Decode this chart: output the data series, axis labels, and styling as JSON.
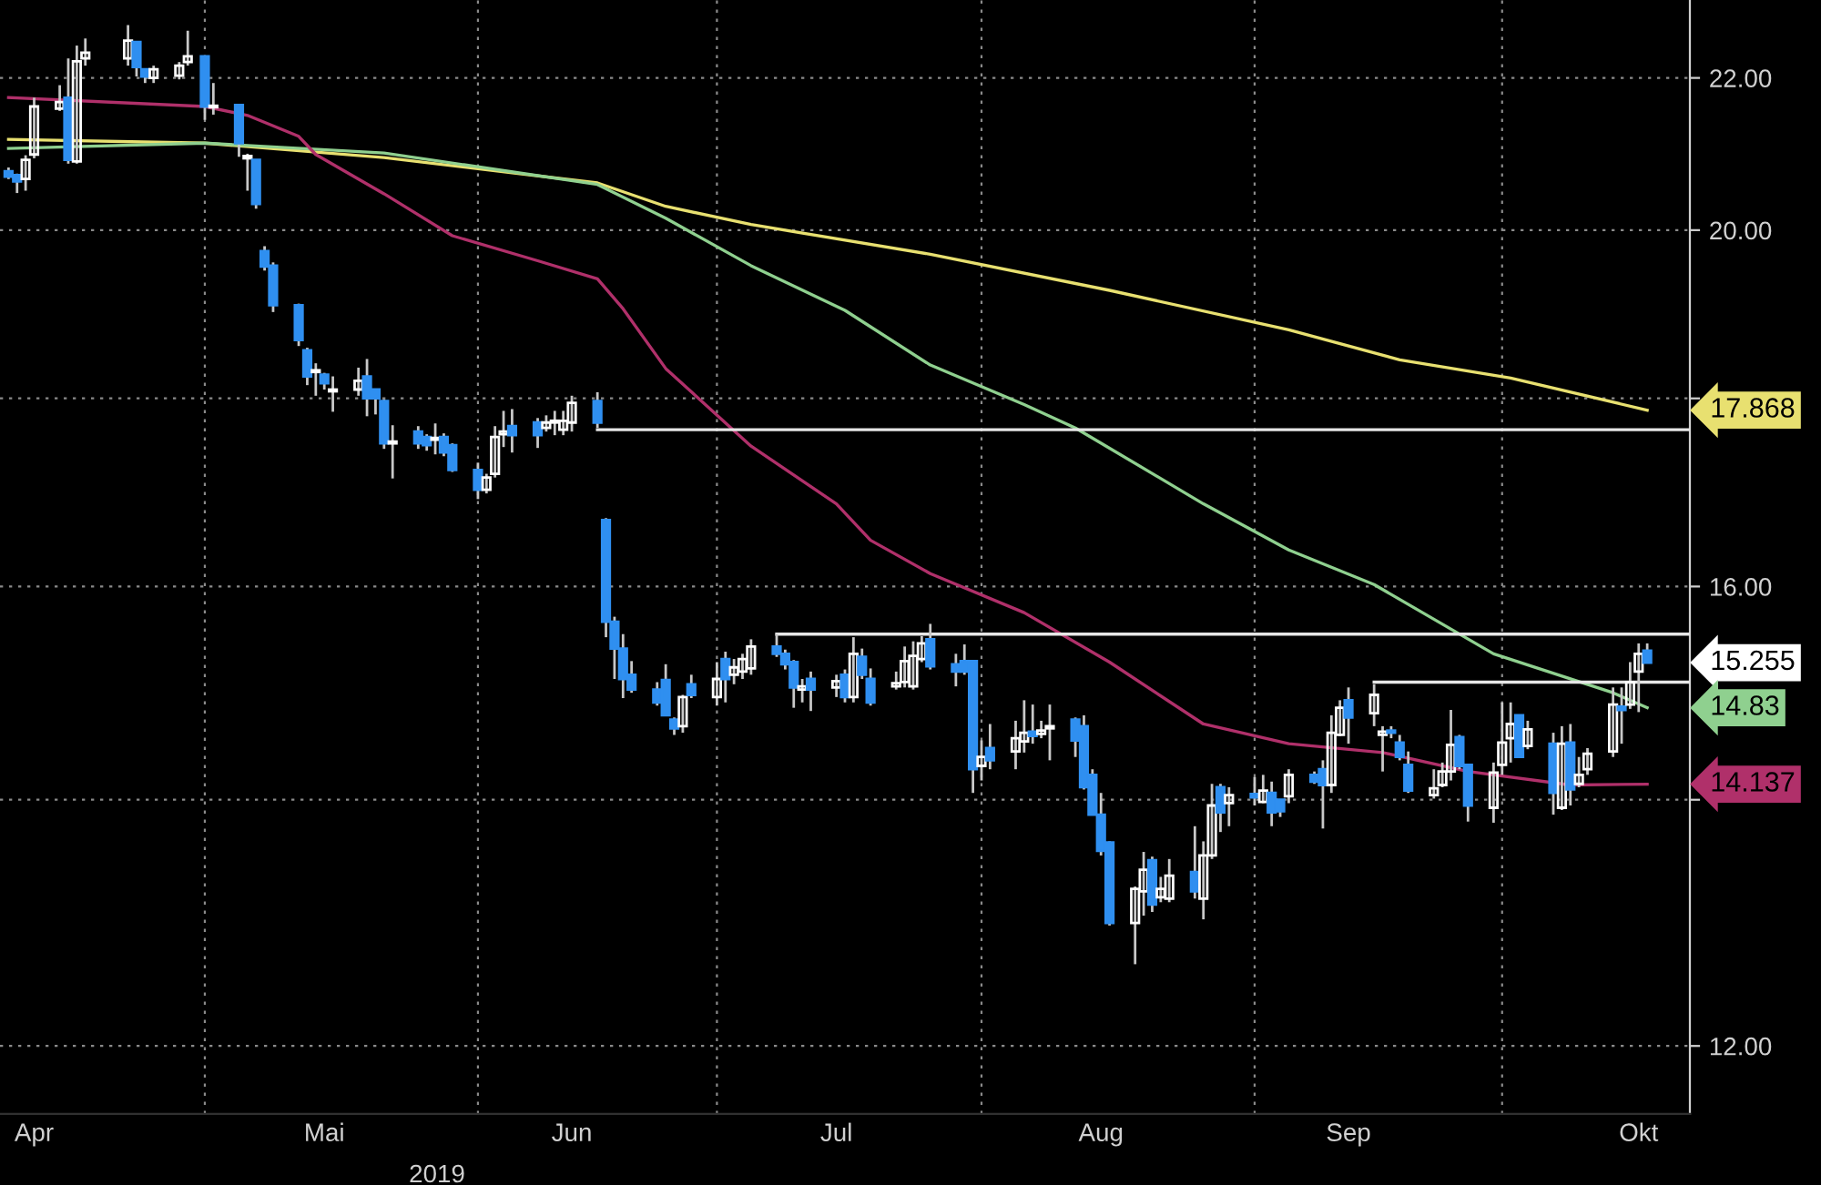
{
  "chart_data": {
    "type": "candlestick",
    "xlabel": "2019",
    "log": "y",
    "grid": true,
    "legend": false,
    "x": [
      "2019-04-09",
      "2019-04-10",
      "2019-04-11",
      "2019-04-12",
      "2019-04-15",
      "2019-04-16",
      "2019-04-17",
      "2019-04-18",
      "2019-04-23",
      "2019-04-24",
      "2019-04-25",
      "2019-04-26",
      "2019-04-29",
      "2019-04-30",
      "2019-05-02",
      "2019-05-03",
      "2019-05-06",
      "2019-05-07",
      "2019-05-08",
      "2019-05-09",
      "2019-05-10",
      "2019-05-13",
      "2019-05-14",
      "2019-05-15",
      "2019-05-16",
      "2019-05-17",
      "2019-05-20",
      "2019-05-21",
      "2019-05-22",
      "2019-05-23",
      "2019-05-24",
      "2019-05-27",
      "2019-05-28",
      "2019-05-29",
      "2019-05-30",
      "2019-05-31",
      "2019-06-03",
      "2019-06-04",
      "2019-06-05",
      "2019-06-06",
      "2019-06-07",
      "2019-06-10",
      "2019-06-11",
      "2019-06-12",
      "2019-06-13",
      "2019-06-14",
      "2019-06-17",
      "2019-06-18",
      "2019-06-19",
      "2019-06-20",
      "2019-06-21",
      "2019-06-24",
      "2019-06-25",
      "2019-06-26",
      "2019-06-27",
      "2019-06-28",
      "2019-07-01",
      "2019-07-02",
      "2019-07-03",
      "2019-07-04",
      "2019-07-05",
      "2019-07-08",
      "2019-07-09",
      "2019-07-10",
      "2019-07-11",
      "2019-07-12",
      "2019-07-15",
      "2019-07-16",
      "2019-07-17",
      "2019-07-18",
      "2019-07-19",
      "2019-07-22",
      "2019-07-23",
      "2019-07-24",
      "2019-07-25",
      "2019-07-26",
      "2019-07-29",
      "2019-07-30",
      "2019-07-31",
      "2019-08-01",
      "2019-08-02",
      "2019-08-05",
      "2019-08-06",
      "2019-08-07",
      "2019-08-08",
      "2019-08-09",
      "2019-08-12",
      "2019-08-13",
      "2019-08-14",
      "2019-08-15",
      "2019-08-16",
      "2019-08-19",
      "2019-08-20",
      "2019-08-21",
      "2019-08-22",
      "2019-08-23",
      "2019-08-26",
      "2019-08-27",
      "2019-08-28",
      "2019-08-29",
      "2019-08-30",
      "2019-09-02",
      "2019-09-03",
      "2019-09-04",
      "2019-09-05",
      "2019-09-06",
      "2019-09-09",
      "2019-09-10",
      "2019-09-11",
      "2019-09-12",
      "2019-09-13",
      "2019-09-16",
      "2019-09-17",
      "2019-09-18",
      "2019-09-19",
      "2019-09-20",
      "2019-09-23",
      "2019-09-24",
      "2019-09-25",
      "2019-09-26",
      "2019-09-27",
      "2019-09-30",
      "2019-10-01",
      "2019-10-02",
      "2019-10-03",
      "2019-10-04",
      "2019-10-07",
      "2019-10-08",
      "2019-10-09",
      "2019-10-10",
      "2019-10-11",
      "2019-10-14",
      "2019-10-15",
      "2019-10-16",
      "2019-10-17",
      "2019-10-18"
    ],
    "xlim": [
      "2019-04-08",
      "2019-10-23"
    ],
    "xticks": [
      {
        "value": "2019-04-12",
        "label": "Apr"
      },
      {
        "value": "2019-05-16",
        "label": "Mai"
      },
      {
        "value": "2019-06-14",
        "label": "Jun"
      },
      {
        "value": "2019-07-15",
        "label": "Jul"
      },
      {
        "value": "2019-08-15",
        "label": "Aug"
      },
      {
        "value": "2019-09-13",
        "label": "Sep"
      },
      {
        "value": "2019-10-17",
        "label": "Okt"
      },
      {
        "value": "2019-05-02",
        "label": null
      },
      {
        "value": "2019-06-03",
        "label": null
      },
      {
        "value": "2019-07-01",
        "label": null
      },
      {
        "value": "2019-08-01",
        "label": null
      },
      {
        "value": "2019-09-02",
        "label": null
      },
      {
        "value": "2019-10-01",
        "label": null
      }
    ],
    "ylim": [
      11.5,
      23.1
    ],
    "yticks": [
      {
        "value": 12,
        "label": "12.00"
      },
      {
        "value": 14,
        "label": null
      },
      {
        "value": 16,
        "label": "16.00"
      },
      {
        "value": 18,
        "label": null
      },
      {
        "value": 20,
        "label": "20.00"
      },
      {
        "value": 22,
        "label": "22.00"
      }
    ],
    "series": [
      {
        "colors": [
          "#2f8ff0",
          "#2f8ff0",
          "#ffffff",
          "#ffffff",
          "#ffffff",
          "#2f8ff0",
          "#ffffff",
          "#ffffff",
          "#ffffff",
          "#2f8ff0",
          "#2f8ff0",
          "#ffffff",
          "#ffffff",
          "#ffffff",
          "#2f8ff0",
          "#ffffff",
          "#2f8ff0",
          "#ffffff",
          "#2f8ff0",
          "#2f8ff0",
          "#2f8ff0",
          "#2f8ff0",
          "#2f8ff0",
          "#ffffff",
          "#2f8ff0",
          "#ffffff",
          "#ffffff",
          "#2f8ff0",
          "#2f8ff0",
          "#2f8ff0",
          "#ffffff",
          "#2f8ff0",
          "#2f8ff0",
          "#ffffff",
          "#2f8ff0",
          "#2f8ff0",
          "#2f8ff0",
          "#ffffff",
          "#ffffff",
          "#ffffff",
          "#2f8ff0",
          "#2f8ff0",
          "#ffffff",
          "#ffffff",
          "#ffffff",
          "#ffffff",
          "#2f8ff0",
          "#2f8ff0",
          "#2f8ff0",
          "#2f8ff0",
          "#2f8ff0",
          "#2f8ff0",
          "#2f8ff0",
          "#2f8ff0",
          "#ffffff",
          "#2f8ff0",
          "#ffffff",
          "#2f8ff0",
          "#ffffff",
          "#ffffff",
          "#ffffff",
          "#2f8ff0",
          "#2f8ff0",
          "#2f8ff0",
          "#ffffff",
          "#2f8ff0",
          "#ffffff",
          "#2f8ff0",
          "#ffffff",
          "#2f8ff0",
          "#2f8ff0",
          "#ffffff",
          "#ffffff",
          "#ffffff",
          "#ffffff",
          "#2f8ff0",
          "#2f8ff0",
          "#2f8ff0",
          "#2f8ff0",
          "#ffffff",
          "#2f8ff0",
          "#ffffff",
          "#ffffff",
          "#2f8ff0",
          "#ffffff",
          "#ffffff",
          "#2f8ff0",
          "#2f8ff0",
          "#2f8ff0",
          "#2f8ff0",
          "#2f8ff0",
          "#ffffff",
          "#ffffff",
          "#2f8ff0",
          "#ffffff",
          "#ffffff",
          "#2f8ff0",
          "#ffffff",
          "#ffffff",
          "#2f8ff0",
          "#ffffff",
          "#2f8ff0",
          "#ffffff",
          "#2f8ff0",
          "#2f8ff0",
          "#ffffff",
          "#2f8ff0",
          "#2f8ff0",
          "#ffffff",
          "#ffffff",
          "#2f8ff0",
          "#ffffff",
          "#ffffff",
          "#2f8ff0",
          "#2f8ff0",
          "#2f8ff0",
          "#ffffff",
          "#ffffff",
          "#ffffff",
          "#2f8ff0",
          "#2f8ff0",
          "#ffffff",
          "#ffffff",
          "#ffffff",
          "#2f8ff0",
          "#ffffff",
          "#2f8ff0",
          "#ffffff",
          "#2f8ff0",
          "#ffffff",
          "#ffffff",
          "#ffffff",
          "#2f8ff0",
          "#ffffff",
          "#ffffff",
          "#2f8ff0"
        ],
        "ohlc": [
          [
            20.75,
            20.8,
            20.65,
            20.68
          ],
          [
            20.7,
            20.72,
            20.47,
            20.62
          ],
          [
            20.65,
            20.96,
            20.5,
            20.9
          ],
          [
            20.97,
            21.73,
            20.92,
            21.61
          ],
          [
            21.58,
            21.9,
            21.55,
            21.67
          ],
          [
            21.73,
            22.27,
            20.85,
            20.9
          ],
          [
            20.88,
            22.45,
            20.85,
            22.23
          ],
          [
            22.27,
            22.55,
            22.17,
            22.35
          ],
          [
            22.27,
            22.74,
            22.17,
            22.52
          ],
          [
            22.5,
            22.5,
            22.02,
            22.15
          ],
          [
            22.12,
            22.12,
            21.93,
            22.02
          ],
          [
            22.0,
            22.17,
            21.93,
            22.12
          ],
          [
            22.03,
            22.22,
            21.98,
            22.17
          ],
          [
            22.22,
            22.66,
            22.17,
            22.3
          ],
          [
            22.3,
            22.3,
            21.43,
            21.61
          ],
          [
            21.6,
            21.93,
            21.5,
            21.62
          ],
          [
            21.63,
            21.63,
            20.94,
            21.12
          ],
          [
            20.92,
            20.98,
            20.5,
            20.95
          ],
          [
            20.9,
            20.9,
            20.27,
            20.33
          ],
          [
            19.74,
            19.8,
            19.5,
            19.55
          ],
          [
            19.56,
            19.6,
            19.0,
            19.08
          ],
          [
            19.08,
            19.1,
            18.6,
            18.67
          ],
          [
            18.55,
            18.58,
            18.15,
            18.25
          ],
          [
            18.3,
            18.4,
            18.03,
            18.32
          ],
          [
            18.27,
            18.29,
            18.1,
            18.17
          ],
          [
            18.08,
            18.25,
            17.85,
            18.1
          ],
          [
            18.1,
            18.35,
            18.03,
            18.2
          ],
          [
            18.25,
            18.45,
            17.8,
            18.0
          ],
          [
            18.1,
            18.1,
            17.82,
            18.0
          ],
          [
            17.97,
            17.99,
            17.44,
            17.5
          ],
          [
            17.5,
            17.7,
            17.12,
            17.52
          ],
          [
            17.63,
            17.69,
            17.44,
            17.5
          ],
          [
            17.57,
            17.6,
            17.42,
            17.48
          ],
          [
            17.54,
            17.72,
            17.38,
            17.56
          ],
          [
            17.57,
            17.61,
            17.36,
            17.4
          ],
          [
            17.48,
            17.5,
            17.19,
            17.21
          ],
          [
            17.21,
            17.29,
            16.9,
            17.0
          ],
          [
            17.0,
            17.17,
            16.96,
            17.13
          ],
          [
            17.17,
            17.69,
            17.13,
            17.57
          ],
          [
            17.6,
            17.86,
            17.46,
            17.63
          ],
          [
            17.69,
            17.88,
            17.4,
            17.59
          ],
          [
            17.73,
            17.78,
            17.45,
            17.59
          ],
          [
            17.67,
            17.81,
            17.63,
            17.73
          ],
          [
            17.73,
            17.86,
            17.59,
            17.75
          ],
          [
            17.65,
            17.86,
            17.59,
            17.75
          ],
          [
            17.73,
            18.03,
            17.63,
            17.95
          ],
          [
            17.97,
            18.07,
            17.67,
            17.73
          ],
          [
            16.68,
            16.7,
            15.5,
            15.65
          ],
          [
            15.65,
            15.7,
            15.1,
            15.39
          ],
          [
            15.39,
            15.53,
            14.92,
            15.1
          ],
          [
            15.14,
            15.27,
            14.97,
            15.0
          ],
          [
            15.0,
            15.07,
            14.85,
            14.88
          ],
          [
            15.09,
            15.24,
            14.76,
            14.76
          ],
          [
            14.72,
            14.74,
            14.58,
            14.64
          ],
          [
            14.66,
            14.95,
            14.6,
            14.93
          ],
          [
            15.05,
            15.14,
            14.92,
            14.95
          ],
          [
            14.93,
            15.26,
            14.85,
            15.1
          ],
          [
            15.29,
            15.36,
            14.88,
            15.1
          ],
          [
            15.14,
            15.29,
            15.05,
            15.21
          ],
          [
            15.17,
            15.34,
            15.1,
            15.29
          ],
          [
            15.2,
            15.48,
            15.14,
            15.41
          ],
          [
            15.41,
            15.53,
            15.31,
            15.34
          ],
          [
            15.34,
            15.38,
            15.19,
            15.24
          ],
          [
            15.26,
            15.28,
            14.83,
            15.02
          ],
          [
            15.0,
            15.1,
            14.88,
            15.03
          ],
          [
            15.1,
            15.17,
            14.8,
            15.0
          ],
          [
            15.02,
            15.14,
            14.93,
            15.08
          ],
          [
            15.14,
            15.19,
            14.88,
            14.93
          ],
          [
            14.93,
            15.5,
            14.88,
            15.34
          ],
          [
            15.31,
            15.39,
            15.1,
            15.14
          ],
          [
            15.1,
            15.2,
            14.85,
            14.88
          ],
          [
            15.03,
            15.17,
            15.0,
            15.06
          ],
          [
            15.07,
            15.41,
            15.02,
            15.27
          ],
          [
            15.03,
            15.46,
            15.0,
            15.32
          ],
          [
            15.29,
            15.51,
            15.26,
            15.44
          ],
          [
            15.48,
            15.63,
            15.19,
            15.22
          ],
          [
            15.24,
            15.34,
            15.03,
            15.17
          ],
          [
            15.27,
            15.43,
            15.14,
            15.17
          ],
          [
            15.27,
            15.27,
            14.06,
            14.27
          ],
          [
            14.3,
            14.53,
            14.17,
            14.38
          ],
          [
            14.46,
            14.68,
            14.27,
            14.35
          ],
          [
            14.43,
            14.71,
            14.27,
            14.55
          ],
          [
            14.52,
            14.9,
            14.42,
            14.6
          ],
          [
            14.61,
            14.86,
            14.5,
            14.57
          ],
          [
            14.59,
            14.71,
            14.55,
            14.62
          ],
          [
            14.64,
            14.86,
            14.35,
            14.66
          ],
          [
            14.72,
            14.74,
            14.38,
            14.53
          ],
          [
            14.66,
            14.76,
            14.09,
            14.11
          ],
          [
            14.22,
            14.27,
            13.87,
            13.87
          ],
          [
            13.87,
            14.06,
            13.52,
            13.56
          ],
          [
            13.63,
            13.64,
            12.94,
            12.96
          ],
          [
            12.96,
            13.26,
            12.63,
            13.24
          ],
          [
            13.22,
            13.55,
            13.02,
            13.4
          ],
          [
            13.48,
            13.51,
            13.05,
            13.11
          ],
          [
            13.17,
            13.34,
            13.13,
            13.24
          ],
          [
            13.16,
            13.49,
            13.13,
            13.35
          ],
          [
            13.38,
            13.77,
            13.16,
            13.22
          ],
          [
            13.16,
            13.64,
            12.99,
            13.52
          ],
          [
            13.52,
            14.14,
            13.49,
            13.95
          ],
          [
            14.11,
            14.14,
            13.72,
            13.89
          ],
          [
            13.97,
            14.11,
            13.77,
            14.04
          ],
          [
            14.05,
            14.2,
            13.95,
            14.02
          ],
          [
            13.98,
            14.22,
            13.97,
            14.08
          ],
          [
            14.06,
            14.16,
            13.77,
            13.89
          ],
          [
            14.0,
            14.0,
            13.85,
            13.9
          ],
          [
            14.03,
            14.27,
            13.97,
            14.22
          ],
          [
            14.22,
            14.25,
            14.14,
            14.16
          ],
          [
            14.27,
            14.35,
            13.75,
            14.13
          ],
          [
            14.13,
            14.76,
            14.06,
            14.6
          ],
          [
            14.58,
            14.9,
            14.57,
            14.83
          ],
          [
            14.9,
            15.02,
            14.5,
            14.74
          ],
          [
            14.78,
            15.05,
            14.66,
            14.95
          ],
          [
            14.58,
            14.66,
            14.25,
            14.61
          ],
          [
            14.62,
            14.66,
            14.55,
            14.6
          ],
          [
            14.51,
            14.58,
            14.35,
            14.38
          ],
          [
            14.31,
            14.43,
            14.06,
            14.08
          ],
          [
            14.04,
            14.27,
            14.01,
            14.1
          ],
          [
            14.13,
            14.33,
            14.11,
            14.25
          ],
          [
            14.25,
            14.81,
            14.17,
            14.49
          ],
          [
            14.56,
            14.58,
            14.27,
            14.3
          ],
          [
            14.31,
            14.31,
            13.81,
            13.95
          ],
          [
            13.93,
            14.33,
            13.8,
            14.24
          ],
          [
            14.31,
            14.88,
            14.22,
            14.51
          ],
          [
            14.55,
            14.88,
            14.33,
            14.68
          ],
          [
            14.76,
            14.76,
            14.38,
            14.38
          ],
          [
            14.48,
            14.71,
            14.45,
            14.63
          ],
          [
            14.5,
            14.6,
            13.87,
            14.06
          ],
          [
            13.93,
            14.66,
            13.91,
            14.5
          ],
          [
            14.51,
            14.68,
            13.95,
            14.09
          ],
          [
            14.14,
            14.38,
            14.11,
            14.22
          ],
          [
            14.27,
            14.46,
            14.22,
            14.41
          ],
          [
            14.43,
            15.02,
            14.38,
            14.86
          ],
          [
            14.84,
            15.02,
            14.5,
            14.81
          ],
          [
            14.86,
            15.26,
            14.82,
            15.07
          ],
          [
            15.17,
            15.44,
            14.79,
            15.34
          ],
          [
            15.37,
            15.44,
            15.25,
            15.255
          ]
        ]
      },
      {
        "type": "line",
        "color": "#e8e070",
        "x": [
          "2019-04-09",
          "2019-05-02",
          "2019-05-23",
          "2019-06-17",
          "2019-06-25",
          "2019-07-05",
          "2019-07-26",
          "2019-08-16",
          "2019-09-06",
          "2019-09-19",
          "2019-10-02",
          "2019-10-18"
        ],
        "values": [
          21.17,
          21.12,
          20.93,
          20.6,
          20.3,
          20.07,
          19.7,
          19.26,
          18.79,
          18.44,
          18.23,
          17.868
        ]
      },
      {
        "type": "line",
        "color": "#8fd08f",
        "x": [
          "2019-04-09",
          "2019-05-02",
          "2019-05-23",
          "2019-06-17",
          "2019-06-25",
          "2019-07-05",
          "2019-07-16",
          "2019-07-26",
          "2019-08-06",
          "2019-08-12",
          "2019-08-27",
          "2019-09-06",
          "2019-09-16",
          "2019-09-30",
          "2019-10-14",
          "2019-10-18"
        ],
        "values": [
          21.05,
          21.12,
          20.99,
          20.58,
          20.15,
          19.56,
          19.02,
          18.38,
          17.93,
          17.67,
          16.85,
          16.37,
          16.02,
          15.34,
          14.97,
          14.83
        ]
      },
      {
        "type": "line",
        "color": "#b0306a",
        "x": [
          "2019-04-09",
          "2019-05-02",
          "2019-05-07",
          "2019-05-13",
          "2019-05-15",
          "2019-05-23",
          "2019-05-31",
          "2019-06-10",
          "2019-06-17",
          "2019-06-20",
          "2019-06-25",
          "2019-07-05",
          "2019-07-15",
          "2019-07-19",
          "2019-07-26",
          "2019-08-06",
          "2019-08-16",
          "2019-08-27",
          "2019-09-06",
          "2019-09-17",
          "2019-09-27",
          "2019-10-09",
          "2019-10-18"
        ],
        "values": [
          21.73,
          21.61,
          21.49,
          21.21,
          20.97,
          20.46,
          19.93,
          19.62,
          19.4,
          19.04,
          18.34,
          17.47,
          16.85,
          16.47,
          16.13,
          15.74,
          15.26,
          14.68,
          14.5,
          14.42,
          14.25,
          14.13,
          14.137
        ]
      },
      {
        "type": "line",
        "color": "#e6e6e6",
        "x": [
          "2019-06-17",
          "2019-10-23"
        ],
        "values": [
          17.65,
          17.65
        ]
      },
      {
        "type": "line",
        "color": "#e6e6e6",
        "x": [
          "2019-07-08",
          "2019-10-23"
        ],
        "values": [
          15.53,
          15.53
        ]
      },
      {
        "type": "line",
        "color": "#e6e6e6",
        "x": [
          "2019-09-16",
          "2019-10-23"
        ],
        "values": [
          15.07,
          15.07
        ]
      }
    ],
    "annotations": [
      {
        "text": "17.868",
        "x": "2019-10-18",
        "y": 17.868
      },
      {
        "text": "15.255",
        "x": "2019-10-18",
        "y": 15.255
      },
      {
        "text": "14.83",
        "x": "2019-10-18",
        "y": 14.83
      },
      {
        "text": "14.137",
        "x": "2019-10-18",
        "y": 14.137
      }
    ]
  }
}
